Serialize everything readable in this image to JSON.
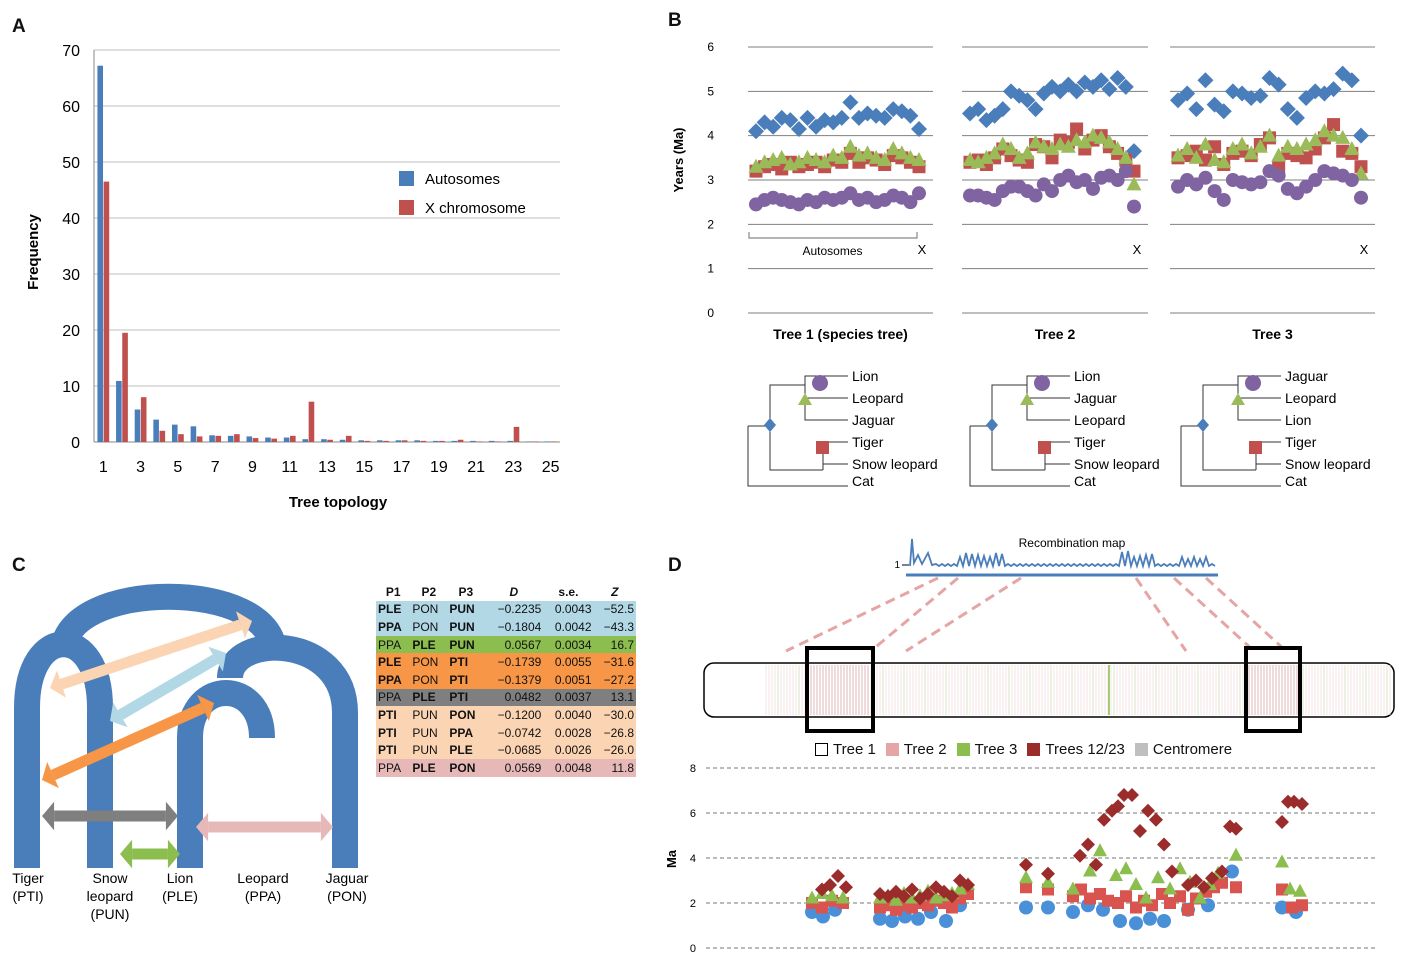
{
  "panels": {
    "a": "A",
    "b": "B",
    "c": "C",
    "d": "D"
  },
  "chart_data": [
    {
      "type": "bar",
      "panel": "A",
      "xlabel": "Tree topology",
      "ylabel": "Frequency",
      "ylim": [
        0,
        70
      ],
      "yticks": [
        0,
        10,
        20,
        30,
        40,
        50,
        60,
        70
      ],
      "x_tick_labels": [
        "1",
        "3",
        "5",
        "7",
        "9",
        "11",
        "13",
        "15",
        "17",
        "19",
        "21",
        "23",
        "25"
      ],
      "categories": [
        1,
        2,
        3,
        4,
        5,
        6,
        7,
        8,
        9,
        10,
        11,
        12,
        13,
        14,
        15,
        16,
        17,
        18,
        19,
        20,
        21,
        22,
        23,
        24,
        25
      ],
      "legend_position": "right",
      "colors": {
        "Autosomes": "#4a7ebb",
        "X chromosome": "#c0504d"
      },
      "series": [
        {
          "name": "Autosomes",
          "values": [
            67.2,
            10.9,
            5.8,
            4.0,
            3.1,
            2.8,
            1.2,
            1.1,
            1.0,
            0.8,
            0.8,
            0.5,
            0.5,
            0.4,
            0.3,
            0.3,
            0.3,
            0.3,
            0.2,
            0.2,
            0.2,
            0.2,
            0.2,
            0.1,
            0.1
          ]
        },
        {
          "name": "X chromosome",
          "values": [
            46.5,
            19.5,
            8.0,
            2.0,
            1.4,
            1.0,
            1.1,
            1.4,
            0.7,
            0.6,
            1.1,
            7.2,
            0.4,
            1.1,
            0.2,
            0.2,
            0.3,
            0.2,
            0.2,
            0.4,
            0.1,
            0.1,
            2.7,
            0.1,
            0.1
          ]
        }
      ]
    },
    {
      "type": "scatter",
      "panel": "B",
      "ylabel": "Years (Ma)",
      "ylim": [
        0,
        6
      ],
      "yticks": [
        0,
        1,
        2,
        3,
        4,
        5,
        6
      ],
      "colors": {
        "diamond": "#4a7ebb",
        "square": "#c0504d",
        "triangle": "#9bbb59",
        "circle": "#8064a2"
      },
      "subplots": [
        {
          "title": "Tree 1 (species tree)",
          "bracket_label": "Autosomes",
          "x_label": "X",
          "diamond": [
            4.1,
            4.3,
            4.2,
            4.4,
            4.35,
            4.15,
            4.4,
            4.2,
            4.35,
            4.3,
            4.4,
            4.75,
            4.4,
            4.5,
            4.45,
            4.4,
            4.6,
            4.55,
            4.45,
            4.15
          ],
          "square": [
            3.2,
            3.3,
            3.35,
            3.25,
            3.4,
            3.3,
            3.35,
            3.4,
            3.3,
            3.45,
            3.4,
            3.6,
            3.4,
            3.5,
            3.45,
            3.35,
            3.55,
            3.5,
            3.4,
            3.3
          ],
          "triangle": [
            3.3,
            3.4,
            3.45,
            3.5,
            3.35,
            3.4,
            3.5,
            3.45,
            3.4,
            3.55,
            3.5,
            3.75,
            3.55,
            3.6,
            3.5,
            3.45,
            3.7,
            3.6,
            3.5,
            3.45
          ],
          "circle": [
            2.45,
            2.55,
            2.6,
            2.55,
            2.5,
            2.45,
            2.55,
            2.5,
            2.6,
            2.55,
            2.6,
            2.7,
            2.55,
            2.6,
            2.5,
            2.55,
            2.65,
            2.6,
            2.5,
            2.7
          ]
        },
        {
          "title": "Tree 2",
          "x_label": "X",
          "diamond": [
            4.5,
            4.6,
            4.35,
            4.45,
            4.6,
            5.0,
            4.9,
            4.8,
            4.6,
            4.95,
            5.1,
            5.0,
            5.15,
            5.0,
            5.2,
            5.1,
            5.25,
            5.05,
            5.3,
            5.1,
            3.65
          ],
          "square": [
            3.4,
            3.45,
            3.35,
            3.5,
            3.7,
            3.55,
            3.45,
            3.4,
            3.8,
            3.75,
            3.5,
            3.9,
            3.85,
            4.15,
            3.7,
            3.9,
            4.0,
            3.75,
            3.6,
            3.45,
            3.2
          ],
          "triangle": [
            3.45,
            3.4,
            3.5,
            3.6,
            3.8,
            3.7,
            3.5,
            3.6,
            3.85,
            3.75,
            3.7,
            3.8,
            3.75,
            3.9,
            3.85,
            4.0,
            3.95,
            3.85,
            3.7,
            3.5,
            2.9
          ],
          "circle": [
            2.65,
            2.65,
            2.6,
            2.55,
            2.75,
            2.85,
            2.85,
            2.75,
            2.65,
            2.9,
            2.75,
            3.0,
            3.1,
            2.95,
            3.0,
            2.8,
            3.05,
            3.1,
            3.0,
            3.2,
            2.4
          ]
        },
        {
          "title": "Tree 3",
          "x_label": "X",
          "diamond": [
            4.8,
            4.95,
            4.6,
            5.25,
            4.7,
            4.55,
            5.0,
            4.95,
            4.85,
            4.9,
            5.3,
            5.15,
            4.6,
            4.4,
            4.85,
            5.0,
            4.95,
            5.05,
            5.4,
            5.25,
            4.0
          ],
          "square": [
            3.5,
            3.55,
            3.65,
            3.45,
            3.75,
            3.35,
            3.6,
            3.65,
            3.55,
            3.8,
            3.95,
            3.3,
            3.6,
            3.55,
            3.5,
            3.7,
            3.95,
            4.25,
            3.65,
            3.6,
            3.3
          ],
          "triangle": [
            3.55,
            3.7,
            3.5,
            3.8,
            3.45,
            3.4,
            3.7,
            3.8,
            3.6,
            3.75,
            4.0,
            3.55,
            3.75,
            3.7,
            3.8,
            3.9,
            4.1,
            4.0,
            3.95,
            3.7,
            3.15
          ],
          "circle": [
            2.85,
            3.0,
            2.9,
            3.05,
            2.75,
            2.55,
            3.0,
            2.95,
            2.9,
            2.95,
            3.2,
            3.1,
            2.8,
            2.7,
            2.85,
            3.0,
            3.2,
            3.15,
            3.1,
            3.0,
            2.6
          ]
        }
      ]
    },
    {
      "type": "table",
      "panel": "C",
      "columns": [
        "P1",
        "P2",
        "P3",
        "D",
        "s.e.",
        "Z"
      ],
      "rows": [
        {
          "p1": "PLE",
          "p2": "PON",
          "p3": "PUN",
          "d": "−0.2235",
          "se": "0.0043",
          "z": "−52.5",
          "bg": "#b2d8e6",
          "bold": [
            "p1",
            "p3"
          ]
        },
        {
          "p1": "PPA",
          "p2": "PON",
          "p3": "PUN",
          "d": "−0.1804",
          "se": "0.0042",
          "z": "−43.3",
          "bg": "#b2d8e6",
          "bold": [
            "p1",
            "p3"
          ]
        },
        {
          "p1": "PPA",
          "p2": "PLE",
          "p3": "PUN",
          "d": "0.0567",
          "se": "0.0034",
          "z": "16.7",
          "bg": "#8cbd4f",
          "bold": [
            "p2",
            "p3"
          ]
        },
        {
          "p1": "PLE",
          "p2": "PON",
          "p3": "PTI",
          "d": "−0.1739",
          "se": "0.0055",
          "z": "−31.6",
          "bg": "#f79646",
          "bold": [
            "p1",
            "p3"
          ]
        },
        {
          "p1": "PPA",
          "p2": "PON",
          "p3": "PTI",
          "d": "−0.1379",
          "se": "0.0051",
          "z": "−27.2",
          "bg": "#f79646",
          "bold": [
            "p1",
            "p3"
          ]
        },
        {
          "p1": "PPA",
          "p2": "PLE",
          "p3": "PTI",
          "d": "0.0482",
          "se": "0.0037",
          "z": "13.1",
          "bg": "#7f7f7f",
          "bold": [
            "p2",
            "p3"
          ]
        },
        {
          "p1": "PTI",
          "p2": "PUN",
          "p3": "PON",
          "d": "−0.1200",
          "se": "0.0040",
          "z": "−30.0",
          "bg": "#fbd4b4",
          "bold": [
            "p1",
            "p3"
          ]
        },
        {
          "p1": "PTI",
          "p2": "PUN",
          "p3": "PPA",
          "d": "−0.0742",
          "se": "0.0028",
          "z": "−26.8",
          "bg": "#fbd4b4",
          "bold": [
            "p1",
            "p3"
          ]
        },
        {
          "p1": "PTI",
          "p2": "PUN",
          "p3": "PLE",
          "d": "−0.0685",
          "se": "0.0026",
          "z": "−26.0",
          "bg": "#fbd4b4",
          "bold": [
            "p1",
            "p3"
          ]
        },
        {
          "p1": "PPA",
          "p2": "PLE",
          "p3": "PON",
          "d": "0.0569",
          "se": "0.0048",
          "z": "11.8",
          "bg": "#e6b9b8",
          "bold": [
            "p2",
            "p3"
          ]
        }
      ]
    },
    {
      "type": "scatter",
      "panel": "D",
      "ylabel": "Ma",
      "ylim": [
        0,
        8
      ],
      "yticks": [
        0,
        2,
        4,
        6,
        8
      ],
      "colors": {
        "Tree 1": "#ffffff",
        "Tree 2": "#e6a5a5",
        "Tree 3": "#8cbd4f",
        "Trees 12/23": "#9b2c2c",
        "Centromere": "#bfbfbf"
      },
      "series": [
        {
          "name": "Tree 1",
          "marker": "circle",
          "x": [
            812,
            823,
            835,
            880,
            892,
            905,
            918,
            931,
            946,
            960,
            1026,
            1048,
            1073,
            1088,
            1103,
            1120,
            1136,
            1150,
            1164,
            1188,
            1208,
            1232,
            1282,
            1296
          ],
          "y": [
            1.6,
            1.4,
            1.7,
            1.3,
            1.2,
            1.4,
            1.3,
            1.6,
            1.2,
            1.9,
            1.8,
            1.8,
            1.6,
            1.9,
            1.7,
            1.2,
            1.1,
            1.3,
            1.2,
            1.7,
            1.9,
            3.4,
            1.8,
            1.6
          ]
        },
        {
          "name": "Tree 2",
          "marker": "square",
          "x": [
            812,
            822,
            832,
            843,
            880,
            888,
            896,
            904,
            912,
            920,
            928,
            936,
            944,
            952,
            960,
            968,
            1026,
            1048,
            1073,
            1081,
            1090,
            1100,
            1108,
            1118,
            1126,
            1136,
            1144,
            1152,
            1162,
            1170,
            1180,
            1188,
            1196,
            1206,
            1214,
            1222,
            1236,
            1282,
            1292,
            1302
          ],
          "y": [
            2.0,
            1.8,
            2.1,
            2.0,
            1.8,
            1.9,
            1.7,
            1.9,
            1.8,
            2.0,
            1.9,
            2.1,
            2.0,
            1.8,
            2.2,
            2.4,
            2.7,
            2.6,
            2.3,
            2.6,
            2.2,
            2.4,
            2.1,
            2.0,
            2.3,
            1.8,
            2.1,
            1.9,
            2.4,
            2.0,
            2.3,
            1.7,
            2.2,
            2.5,
            2.7,
            2.9,
            2.7,
            2.6,
            1.8,
            1.9
          ]
        },
        {
          "name": "Tree 3",
          "marker": "triangle",
          "x": [
            812,
            822,
            832,
            843,
            880,
            888,
            896,
            904,
            912,
            920,
            928,
            936,
            944,
            952,
            960,
            968,
            1026,
            1048,
            1073,
            1090,
            1100,
            1116,
            1126,
            1136,
            1146,
            1158,
            1170,
            1180,
            1190,
            1200,
            1210,
            1218,
            1236,
            1282,
            1290,
            1300
          ],
          "y": [
            2.2,
            2.4,
            2.3,
            2.2,
            2.2,
            2.3,
            2.1,
            2.4,
            2.2,
            2.3,
            2.5,
            2.2,
            2.3,
            2.4,
            2.6,
            2.8,
            3.1,
            2.9,
            2.6,
            3.4,
            4.3,
            3.2,
            3.5,
            2.8,
            2.2,
            3.1,
            2.6,
            3.5,
            2.9,
            2.2,
            2.8,
            3.3,
            4.1,
            3.8,
            2.6,
            2.5
          ]
        },
        {
          "name": "Trees 12/23",
          "marker": "diamond",
          "x": [
            822,
            830,
            838,
            846,
            880,
            888,
            896,
            904,
            912,
            920,
            928,
            936,
            944,
            952,
            960,
            968,
            1026,
            1048,
            1080,
            1088,
            1096,
            1104,
            1112,
            1118,
            1124,
            1132,
            1140,
            1148,
            1156,
            1164,
            1172,
            1188,
            1196,
            1204,
            1212,
            1222,
            1230,
            1236,
            1282,
            1288,
            1294,
            1302
          ],
          "y": [
            2.6,
            2.8,
            3.2,
            2.7,
            2.4,
            2.3,
            2.5,
            2.3,
            2.6,
            2.2,
            2.4,
            2.7,
            2.5,
            2.3,
            3.0,
            2.8,
            3.7,
            3.3,
            4.1,
            4.6,
            3.7,
            5.7,
            6.1,
            6.3,
            6.8,
            6.8,
            5.2,
            6.1,
            5.7,
            4.6,
            3.4,
            2.8,
            3.0,
            2.7,
            3.1,
            3.4,
            5.4,
            5.3,
            5.6,
            6.5,
            6.5,
            6.4
          ]
        }
      ]
    }
  ],
  "panel_b": {
    "trees": [
      {
        "labels": [
          "Lion",
          "Leopard",
          "Jaguar",
          "Tiger",
          "Snow leopard",
          "Cat"
        ]
      },
      {
        "labels": [
          "Lion",
          "Jaguar",
          "Leopard",
          "Tiger",
          "Snow leopard",
          "Cat"
        ]
      },
      {
        "labels": [
          "Jaguar",
          "Leopard",
          "Lion",
          "Tiger",
          "Snow leopard",
          "Cat"
        ]
      }
    ]
  },
  "panel_c": {
    "species": [
      {
        "line1": "Tiger",
        "line2": "(PTI)"
      },
      {
        "line1": "Snow",
        "line2": "leopard",
        "line3": "(PUN)"
      },
      {
        "line1": "Lion",
        "line2": "(PLE)"
      },
      {
        "line1": "Leopard",
        "line2": "(PPA)"
      },
      {
        "line1": "Jaguar",
        "line2": "(PON)"
      }
    ],
    "arrow_colors": [
      "#fbd4b4",
      "#b2d8e6",
      "#f79646",
      "#7f7f7f",
      "#8cbd4f",
      "#e6b9b8"
    ]
  },
  "panel_d": {
    "recomb_title": "Recombination map",
    "recomb_tick": "1",
    "legend": [
      "Tree 1",
      "Tree 2",
      "Tree 3",
      "Trees 12/23",
      "Centromere"
    ]
  }
}
